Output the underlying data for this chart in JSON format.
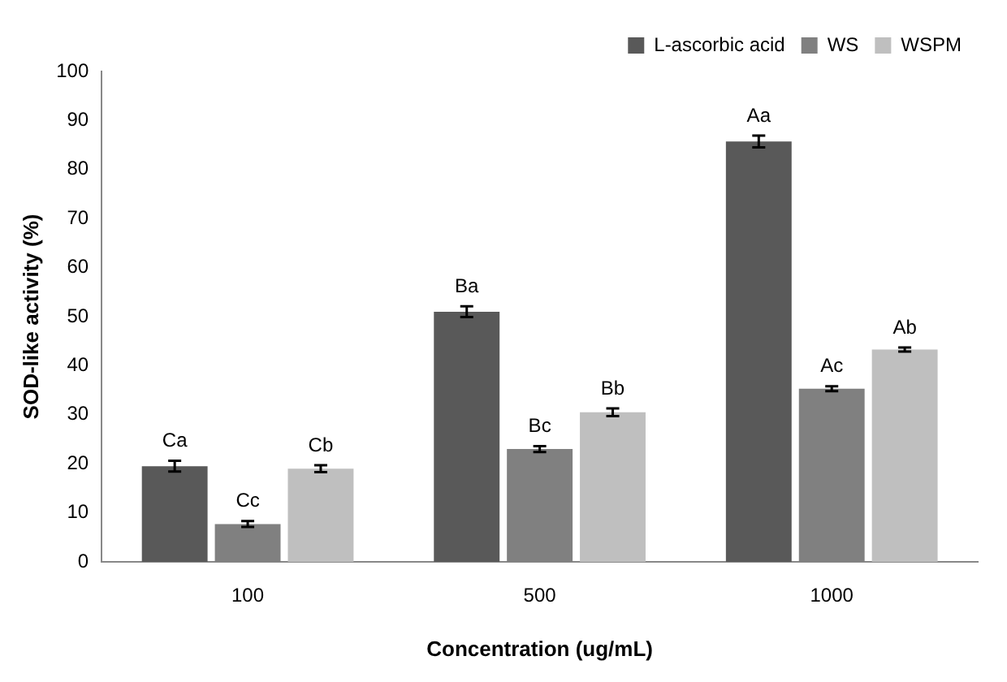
{
  "chart_data": {
    "type": "bar",
    "xlabel": "Concentration (ug/mL)",
    "ylabel": "SOD-like activity (%)",
    "categories": [
      "100",
      "500",
      "1000"
    ],
    "series": [
      {
        "name": "L-ascorbic acid",
        "color": "#595959",
        "values": [
          19.5,
          51,
          85.7
        ],
        "errors": [
          1.1,
          1.1,
          1.2
        ],
        "value_labels": [
          "Ca",
          "Ba",
          "Aa"
        ]
      },
      {
        "name": "WS",
        "color": "#808080",
        "values": [
          7.7,
          23,
          35.3
        ],
        "errors": [
          0.6,
          0.6,
          0.5
        ],
        "value_labels": [
          "Cc",
          "Bc",
          "Ac"
        ]
      },
      {
        "name": "WSPM",
        "color": "#bfbfbf",
        "values": [
          19,
          30.5,
          43.3
        ],
        "errors": [
          0.7,
          0.8,
          0.4
        ],
        "value_labels": [
          "Cb",
          "Bb",
          "Ab"
        ]
      }
    ],
    "ylim": [
      0,
      100
    ],
    "yticks": [
      0,
      10,
      20,
      30,
      40,
      50,
      60,
      70,
      80,
      90,
      100
    ],
    "grid": false,
    "legend": "top right"
  }
}
